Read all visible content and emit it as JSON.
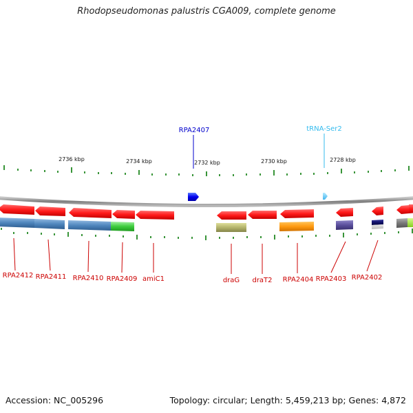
{
  "title": "Rhodopseudomonas palustris CGA009, complete genome",
  "footer": {
    "accession": "Accession: NC_005296",
    "summary": "Topology: circular; Length: 5,459,213 bp; Genes: 4,872"
  },
  "colors": {
    "gene_label": "#cc0000",
    "top_label_blue": "#0000cc",
    "top_label_cyan": "#33bbee",
    "tick": "#228822",
    "backbone": "#888888"
  },
  "scale_labels": [
    "2736 kbp",
    "2734 kbp",
    "2732 kbp",
    "2730 kbp",
    "2728 kbp"
  ],
  "top_labels": [
    {
      "text": "RPA2407",
      "color": "#0000cc"
    },
    {
      "text": "tRNA-Ser2",
      "color": "#33bbee"
    }
  ],
  "gene_labels": [
    "RPA2412",
    "RPA2411",
    "RPA2410",
    "RPA2409",
    "amiC1",
    "draG",
    "draT2",
    "RPA2404",
    "RPA2403",
    "RPA2402"
  ]
}
